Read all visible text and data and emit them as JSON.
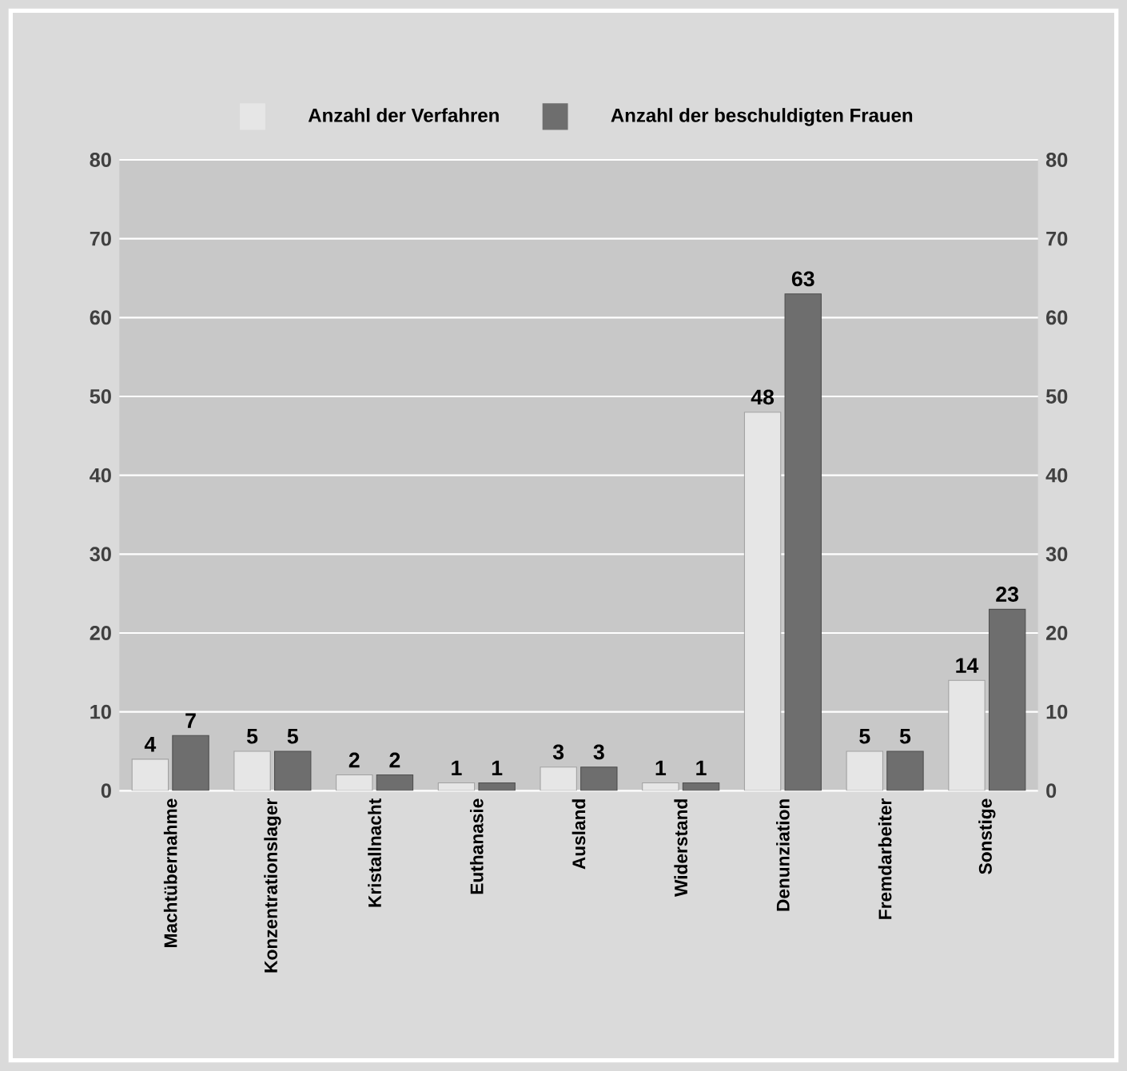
{
  "chart_data": {
    "type": "bar",
    "categories": [
      "Machtübernahme",
      "Konzentrationslager",
      "Kristallnacht",
      "Euthanasie",
      "Ausland",
      "Widerstand",
      "Denunziation",
      "Fremdarbeiter",
      "Sonstige"
    ],
    "series": [
      {
        "name": "Anzahl der Verfahren",
        "color": "#e6e6e6",
        "values": [
          4,
          5,
          2,
          1,
          3,
          1,
          48,
          5,
          14
        ]
      },
      {
        "name": "Anzahl der beschuldigten Frauen",
        "color": "#6e6e6e",
        "values": [
          7,
          5,
          2,
          1,
          3,
          1,
          63,
          5,
          23
        ]
      }
    ],
    "ylim": [
      0,
      80
    ],
    "yticks": [
      0,
      10,
      20,
      30,
      40,
      50,
      60,
      70,
      80
    ],
    "y2lim": [
      0,
      80
    ],
    "y2ticks": [
      0,
      10,
      20,
      30,
      40,
      50,
      60,
      70,
      80
    ],
    "data_labels": true,
    "grid": "y",
    "legend": "top"
  }
}
